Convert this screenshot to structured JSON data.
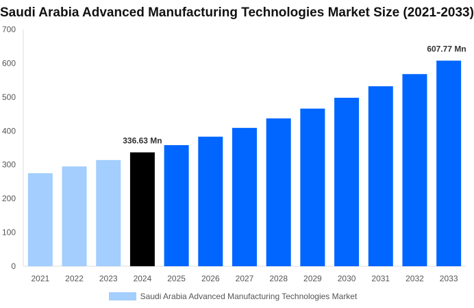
{
  "chart_data": {
    "type": "bar",
    "title": "Saudi Arabia Advanced Manufacturing Technologies Market Size (2021-2033)",
    "categories": [
      "2021",
      "2022",
      "2023",
      "2024",
      "2025",
      "2026",
      "2027",
      "2028",
      "2029",
      "2030",
      "2031",
      "2032",
      "2033"
    ],
    "series": [
      {
        "name": "Saudi Arabia Advanced Manufacturing Technologies Market",
        "values": [
          275,
          295,
          314,
          336.63,
          358,
          383,
          409,
          437,
          466,
          498,
          532,
          568,
          607.77
        ]
      }
    ],
    "bar_colors": {
      "historical": "#a3cefd",
      "base_year": "#000000",
      "forecast": "#0066ff"
    },
    "data_labels": {
      "2024": "336.63 Mn",
      "2033": "607.77 Mn"
    },
    "ylim": [
      0,
      700
    ],
    "yticks": [
      0,
      100,
      200,
      300,
      400,
      500,
      600,
      700
    ],
    "grid": false,
    "legend": "bottom"
  }
}
